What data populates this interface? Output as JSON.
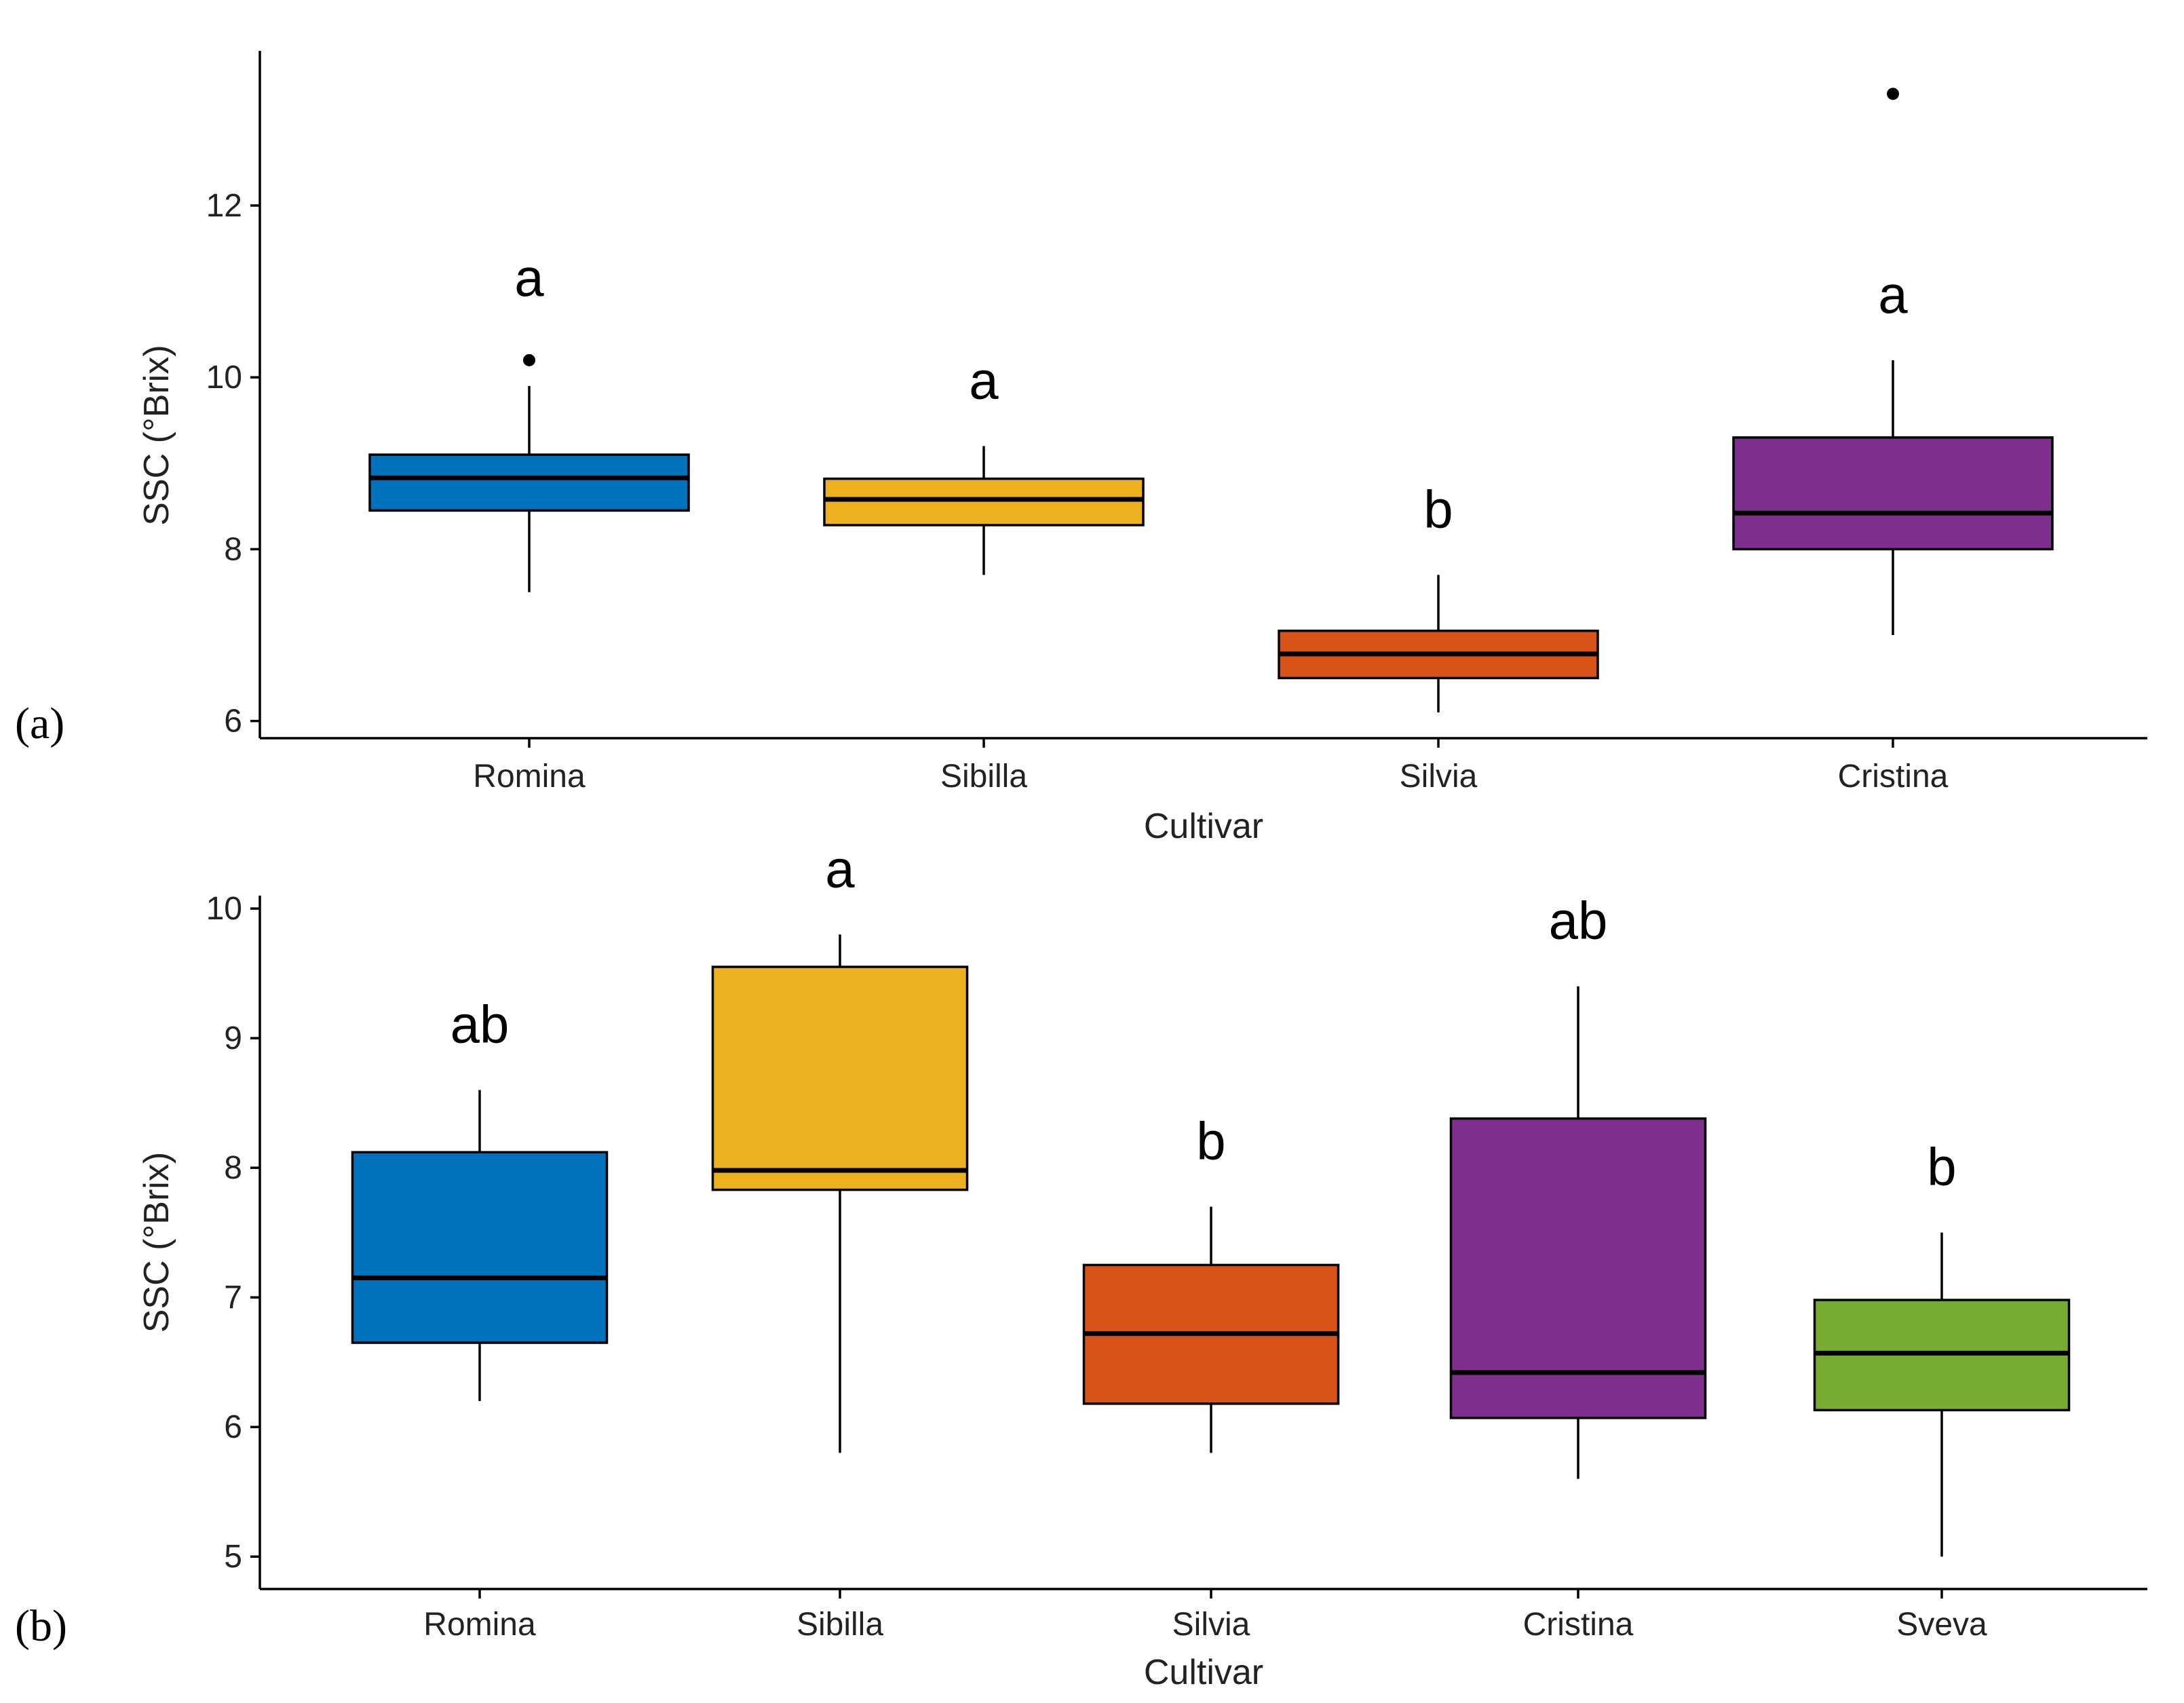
{
  "chart_data": [
    {
      "type": "box",
      "panel_label": "(a)",
      "xlabel": "Cultivar",
      "ylabel": "SSC (°Brix)",
      "ylim": [
        5.8,
        13.8
      ],
      "yticks": [
        6,
        8,
        10,
        12
      ],
      "categories": [
        "Romina",
        "Sibilla",
        "Silvia",
        "Cristina"
      ],
      "boxes": [
        {
          "name": "Romina",
          "color": "#0072BD",
          "whisker_low": 7.5,
          "q1": 8.45,
          "median": 8.83,
          "q3": 9.1,
          "whisker_high": 9.9,
          "outliers": [
            10.2
          ],
          "letter": "a"
        },
        {
          "name": "Sibilla",
          "color": "#EDB120",
          "whisker_low": 7.7,
          "q1": 8.28,
          "median": 8.58,
          "q3": 8.82,
          "whisker_high": 9.2,
          "outliers": [],
          "letter": "a"
        },
        {
          "name": "Silvia",
          "color": "#D95319",
          "whisker_low": 6.1,
          "q1": 6.5,
          "median": 6.78,
          "q3": 7.05,
          "whisker_high": 7.7,
          "outliers": [],
          "letter": "b"
        },
        {
          "name": "Cristina",
          "color": "#7E2F8E",
          "whisker_low": 7.0,
          "q1": 8.0,
          "median": 8.42,
          "q3": 9.3,
          "whisker_high": 10.2,
          "outliers": [
            13.3
          ],
          "letter": "a"
        }
      ]
    },
    {
      "type": "box",
      "panel_label": "(b)",
      "xlabel": "Cultivar",
      "ylabel": "SSC (°Brix)",
      "ylim": [
        4.75,
        10.1
      ],
      "yticks": [
        5,
        6,
        7,
        8,
        9,
        10
      ],
      "categories": [
        "Romina",
        "Sibilla",
        "Silvia",
        "Cristina",
        "Sveva"
      ],
      "boxes": [
        {
          "name": "Romina",
          "color": "#0072BD",
          "whisker_low": 6.2,
          "q1": 6.65,
          "median": 7.15,
          "q3": 8.12,
          "whisker_high": 8.6,
          "outliers": [],
          "letter": "ab"
        },
        {
          "name": "Sibilla",
          "color": "#EDB120",
          "whisker_low": 5.8,
          "q1": 7.83,
          "median": 7.98,
          "q3": 9.55,
          "whisker_high": 9.8,
          "outliers": [],
          "letter": "a"
        },
        {
          "name": "Silvia",
          "color": "#D95319",
          "whisker_low": 5.8,
          "q1": 6.18,
          "median": 6.72,
          "q3": 7.25,
          "whisker_high": 7.7,
          "outliers": [],
          "letter": "b"
        },
        {
          "name": "Cristina",
          "color": "#7E2F8E",
          "whisker_low": 5.6,
          "q1": 6.07,
          "median": 6.42,
          "q3": 8.38,
          "whisker_high": 9.4,
          "outliers": [],
          "letter": "ab"
        },
        {
          "name": "Sveva",
          "color": "#77AC30",
          "whisker_low": 5.0,
          "q1": 6.13,
          "median": 6.57,
          "q3": 6.98,
          "whisker_high": 7.5,
          "outliers": [],
          "letter": "b"
        }
      ]
    }
  ]
}
